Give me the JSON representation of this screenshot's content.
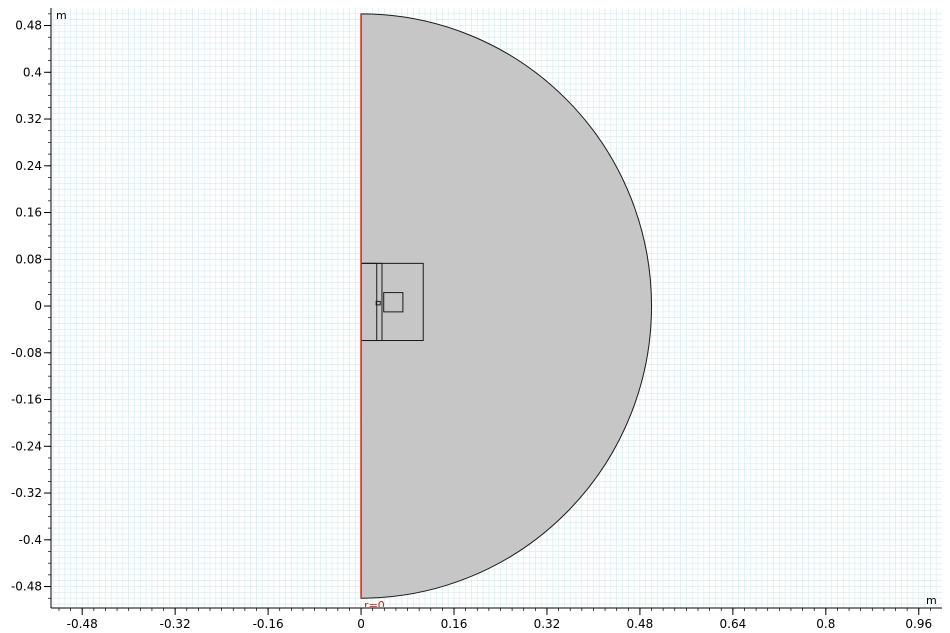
{
  "units": {
    "y_unit": "m",
    "x_unit": "m"
  },
  "axis_marker": {
    "label": "r=0",
    "color": "#e0201a"
  },
  "x_ticks": [
    {
      "value": -0.48,
      "label": "-0.48"
    },
    {
      "value": -0.32,
      "label": "-0.32"
    },
    {
      "value": -0.16,
      "label": "-0.16"
    },
    {
      "value": 0,
      "label": "0"
    },
    {
      "value": 0.16,
      "label": "0.16"
    },
    {
      "value": 0.32,
      "label": "0.32"
    },
    {
      "value": 0.48,
      "label": "0.48"
    },
    {
      "value": 0.64,
      "label": "0.64"
    },
    {
      "value": 0.8,
      "label": "0.8"
    },
    {
      "value": 0.96,
      "label": "0.96"
    }
  ],
  "y_ticks": [
    {
      "value": 0.48,
      "label": "0.48"
    },
    {
      "value": 0.4,
      "label": "0.4"
    },
    {
      "value": 0.32,
      "label": "0.32"
    },
    {
      "value": 0.24,
      "label": "0.24"
    },
    {
      "value": 0.16,
      "label": "0.16"
    },
    {
      "value": 0.08,
      "label": "0.08"
    },
    {
      "value": 0,
      "label": "0"
    },
    {
      "value": -0.08,
      "label": "-0.08"
    },
    {
      "value": -0.16,
      "label": "-0.16"
    },
    {
      "value": -0.24,
      "label": "-0.24"
    },
    {
      "value": -0.32,
      "label": "-0.32"
    },
    {
      "value": -0.4,
      "label": "-0.4"
    },
    {
      "value": -0.48,
      "label": "-0.48"
    }
  ],
  "view": {
    "x_range": [
      -0.532,
      1.0
    ],
    "y_range": [
      -0.515,
      0.51
    ]
  },
  "geometry": {
    "domain_radius": 0.5,
    "domain_fill": "#c6c6c6",
    "rectangles": [
      {
        "name": "outer-box",
        "r": [
          0,
          0.107
        ],
        "z": [
          -0.059,
          0.073
        ]
      },
      {
        "name": "inner-strip-a",
        "r": [
          0,
          0.027
        ],
        "z": [
          -0.059,
          0.073
        ]
      },
      {
        "name": "inner-strip-b",
        "r": [
          0,
          0.036
        ],
        "z": [
          -0.059,
          0.073
        ]
      },
      {
        "name": "coil-box",
        "r": [
          0.039,
          0.072
        ],
        "z": [
          -0.01,
          0.023
        ]
      },
      {
        "name": "tiny-box",
        "r": [
          0.026,
          0.033
        ],
        "z": [
          0.002,
          0.008
        ]
      }
    ]
  },
  "colors": {
    "grid": "#d3ebee",
    "grid_major": "#bfe0e5",
    "background": "#ffffff"
  }
}
